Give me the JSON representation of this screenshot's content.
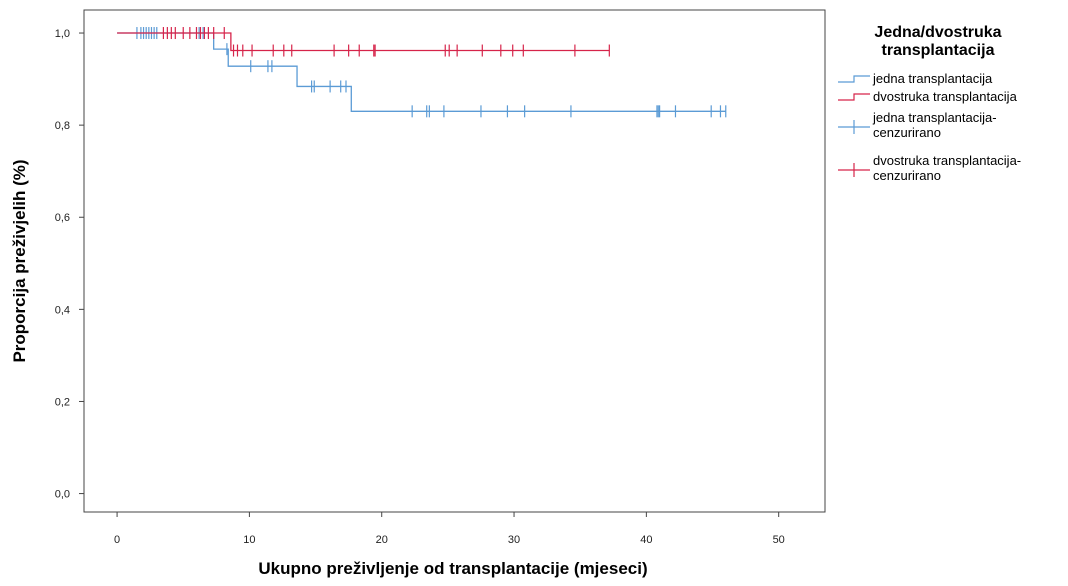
{
  "chart_data": {
    "type": "line",
    "xlabel": "Ukupno preživljenje od transplantacije (mjeseci)",
    "ylabel": "Proporcija preživjelih (%)",
    "xlim": [
      -2.5,
      53.5
    ],
    "ylim": [
      -0.04,
      1.05
    ],
    "xticks": [
      0,
      10,
      20,
      30,
      40,
      50
    ],
    "xtick_labels": [
      "0",
      "10",
      "20",
      "30",
      "40",
      "50"
    ],
    "yticks": [
      0.0,
      0.2,
      0.4,
      0.6,
      0.8,
      1.0
    ],
    "ytick_labels": [
      "0,0",
      "0,2",
      "0,4",
      "0,6",
      "0,8",
      "1,0"
    ],
    "grid": false,
    "legend": {
      "title_lines": [
        "Jedna/dvostruka",
        "transplantacija"
      ],
      "placement": "right",
      "entries": [
        {
          "kind": "step",
          "color": "#5b9bd5",
          "lines": [
            "jedna transplantacija"
          ]
        },
        {
          "kind": "step",
          "color": "#d6244a",
          "lines": [
            "dvostruka transplantacija"
          ]
        },
        {
          "kind": "censor",
          "color": "#5b9bd5",
          "lines": [
            "jedna transplantacija-",
            "cenzurirano"
          ]
        },
        {
          "kind": "censor",
          "color": "#d6244a",
          "lines": [
            "dvostruka transplantacija-",
            "cenzurirano"
          ]
        }
      ]
    },
    "series": [
      {
        "name": "jedna transplantacija",
        "color": "#5b9bd5",
        "steps": [
          [
            0,
            1.0
          ],
          [
            7.3,
            0.965
          ],
          [
            8.4,
            0.928
          ],
          [
            13.6,
            0.884
          ],
          [
            17.7,
            0.83
          ]
        ],
        "end_x": 46,
        "censored_x": [
          1.5,
          1.8,
          2.0,
          2.2,
          2.4,
          2.6,
          2.8,
          3.0,
          6.2,
          6.5,
          8.3,
          10.1,
          11.4,
          11.7,
          14.7,
          14.9,
          16.1,
          16.9,
          17.3,
          22.3,
          23.4,
          23.6,
          24.7,
          27.5,
          29.5,
          30.8,
          34.3,
          40.8,
          40.9,
          41.0,
          42.2,
          44.9,
          45.6,
          46.0
        ]
      },
      {
        "name": "dvostruka transplantacija",
        "color": "#d6244a",
        "steps": [
          [
            0,
            1.0
          ],
          [
            8.6,
            0.962
          ]
        ],
        "end_x": 37.2,
        "censored_x": [
          3.5,
          3.8,
          4.1,
          4.4,
          5.0,
          5.5,
          6.0,
          6.3,
          6.6,
          6.9,
          7.3,
          8.1,
          8.8,
          9.1,
          9.5,
          10.2,
          11.8,
          12.6,
          13.2,
          16.4,
          17.5,
          18.3,
          19.4,
          19.5,
          24.8,
          25.1,
          25.7,
          27.6,
          29.0,
          29.9,
          30.7,
          34.6,
          37.2
        ]
      }
    ]
  }
}
